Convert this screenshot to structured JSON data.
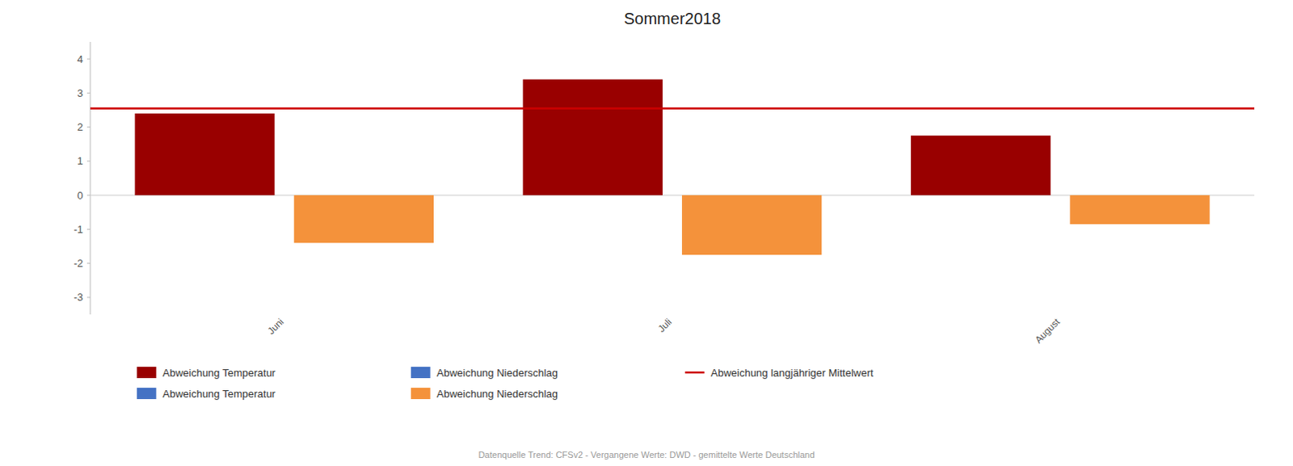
{
  "chart_data": {
    "type": "bar",
    "title": "Sommer2018",
    "categories": [
      "Juni",
      "Juli",
      "August"
    ],
    "series": [
      {
        "color": "#990000",
        "values": [
          2.4,
          3.4,
          1.75
        ]
      },
      {
        "color": "#F4923B",
        "values": [
          -1.4,
          -1.75,
          -0.85
        ]
      }
    ],
    "mean_line": {
      "value": 2.55,
      "color": "#CC0000"
    },
    "ylim": [
      -3.5,
      4.5
    ],
    "yticks": [
      -3,
      -2,
      -1,
      0,
      1,
      2,
      3,
      4
    ],
    "grid": false,
    "legend_entries": [
      {
        "label": "Abweichung Temperatur",
        "color": "#990000",
        "type": "bar"
      },
      {
        "label": "Abweichung Niederschlag",
        "color": "#4472C4",
        "type": "bar"
      },
      {
        "label": "Abweichung langjähriger Mittelwert",
        "color": "#CC0000",
        "type": "line"
      },
      {
        "label": "Abweichung Temperatur",
        "color": "#4472C4",
        "type": "bar"
      },
      {
        "label": "Abweichung Niederschlag",
        "color": "#F4923B",
        "type": "bar"
      }
    ],
    "footnote": "Datenquelle Trend: CFSv2 - Vergangene Werte: DWD - gemittelte Werte Deutschland"
  }
}
